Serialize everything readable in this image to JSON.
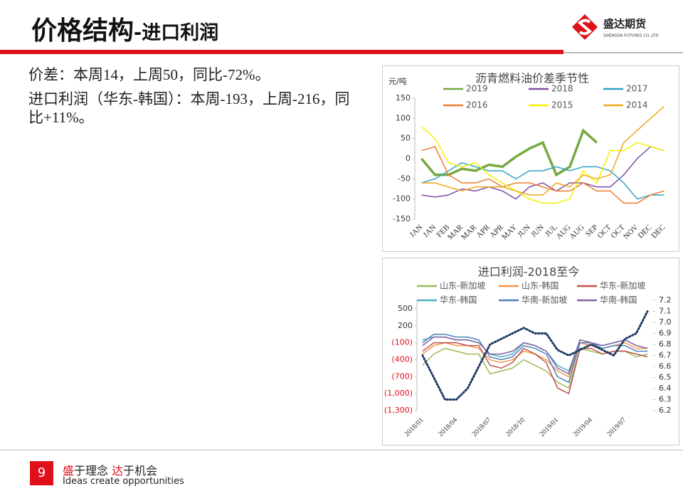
{
  "header": {
    "title": "价格结构",
    "subtitle": "-进口利润",
    "logo_text": "盛达期货",
    "logo_sub": "SHENGDA FUTURES CO.,LTD."
  },
  "body": {
    "lines": [
      "价差：本周14，上周50，同比-72%。",
      "进口利润（华东-韩国）：本周-193，上周-216，同比+11%。"
    ]
  },
  "chart_data": [
    {
      "type": "line",
      "title": "沥青燃料油价差季节性",
      "y_label": "元/吨",
      "categories": [
        "JAN",
        "JAN",
        "FEB",
        "MAR",
        "MAR",
        "APR",
        "APR",
        "MAY",
        "JUN",
        "JUN",
        "JUL",
        "AUG",
        "AUG",
        "SEP",
        "OCT",
        "OCT",
        "NOV",
        "DEC",
        "DEC"
      ],
      "ylim": [
        -150,
        150
      ],
      "yticks": [
        -150,
        -100,
        -50,
        0,
        50,
        100,
        150
      ],
      "grid": false,
      "series": [
        {
          "name": "2019",
          "color": "#77a942",
          "width": 3.5,
          "values": [
            0,
            -40,
            -40,
            -25,
            -30,
            -15,
            -20,
            5,
            25,
            40,
            -40,
            -20,
            70,
            40,
            null,
            null,
            null,
            null,
            null
          ]
        },
        {
          "name": "2018",
          "color": "#7e4ea3",
          "values": [
            -90,
            -95,
            -90,
            -75,
            -80,
            -70,
            -80,
            -100,
            -70,
            -60,
            -80,
            -60,
            -60,
            -70,
            -70,
            -40,
            0,
            30,
            20
          ]
        },
        {
          "name": "2017",
          "color": "#31a3c4",
          "values": [
            -60,
            -50,
            -30,
            -10,
            -20,
            -30,
            -30,
            -50,
            -30,
            -30,
            -20,
            -30,
            -20,
            -20,
            -30,
            -60,
            -100,
            -90,
            -90
          ]
        },
        {
          "name": "2016",
          "color": "#ed7d31",
          "values": [
            20,
            30,
            -40,
            -60,
            -60,
            -50,
            -70,
            -60,
            -60,
            -70,
            -80,
            -80,
            -60,
            -80,
            -80,
            -110,
            -110,
            -90,
            -80
          ]
        },
        {
          "name": "2015",
          "color": "#f2f200",
          "values": [
            80,
            50,
            -10,
            -20,
            -10,
            -40,
            -60,
            -80,
            -100,
            -110,
            -110,
            -100,
            -30,
            -60,
            20,
            20,
            40,
            30,
            20
          ]
        },
        {
          "name": "2014",
          "color": "#f0a81c",
          "values": [
            -60,
            -60,
            -70,
            -80,
            -70,
            -70,
            -70,
            -80,
            -90,
            -90,
            -60,
            -70,
            -40,
            -50,
            -40,
            40,
            70,
            100,
            130
          ]
        }
      ]
    },
    {
      "type": "line",
      "title": "进口利润-2018至今",
      "categories": [
        "2018/01",
        null,
        null,
        "2018/04",
        null,
        null,
        "2018/07",
        null,
        null,
        "2018/10",
        null,
        null,
        "2019/01",
        null,
        null,
        "2019/04",
        null,
        null,
        "2019/07",
        null,
        null
      ],
      "ylim": [
        -1300,
        650
      ],
      "yticks": [
        500,
        200,
        {
          "value": -100,
          "label": "(100)"
        },
        {
          "value": -400,
          "label": "(400)"
        },
        {
          "value": -700,
          "label": "(700)"
        },
        {
          "value": -1000,
          "label": "(1,000)"
        },
        {
          "value": -1300,
          "label": "(1,300)"
        }
      ],
      "y2lim": [
        6.2,
        7.2
      ],
      "y2ticks": [
        7.2,
        7.1,
        {
          "value": 7,
          "label": "7.0"
        },
        6.9,
        6.8,
        6.7,
        6.6,
        6.5,
        6.4,
        6.3,
        6.2
      ],
      "grid": false,
      "series": [
        {
          "name": "山东-新加坡",
          "color": "#9bbb59",
          "values": [
            -500,
            -300,
            -200,
            -250,
            -300,
            -300,
            -650,
            -600,
            -550,
            -400,
            -500,
            -600,
            -800,
            -900,
            -200,
            -250,
            -300,
            -250,
            -250,
            -350,
            -300
          ]
        },
        {
          "name": "山东-韩国",
          "color": "#f79646",
          "values": [
            -300,
            -150,
            -100,
            -150,
            -150,
            -200,
            -400,
            -450,
            -400,
            -250,
            -300,
            -400,
            -600,
            -700,
            -100,
            -150,
            -200,
            -150,
            -100,
            -200,
            -200
          ]
        },
        {
          "name": "华东-新加坡",
          "color": "#c0504d",
          "values": [
            -250,
            -100,
            -100,
            -100,
            -150,
            -150,
            -500,
            -550,
            -450,
            -200,
            -300,
            -450,
            -900,
            -1000,
            -200,
            -200,
            -300,
            -250,
            -250,
            -300,
            -350
          ]
        },
        {
          "name": "华东-韩国",
          "color": "#4bacc6",
          "values": [
            -50,
            0,
            0,
            -50,
            -50,
            -100,
            -300,
            -350,
            -300,
            -100,
            -150,
            -250,
            -500,
            -600,
            -50,
            -100,
            -150,
            -100,
            -50,
            -150,
            -200
          ]
        },
        {
          "name": "华南-新加坡",
          "color": "#4f81bd",
          "values": [
            -100,
            50,
            50,
            0,
            0,
            -50,
            -350,
            -400,
            -350,
            -150,
            -200,
            -300,
            -700,
            -800,
            -100,
            -100,
            -200,
            -150,
            -150,
            -250,
            -250
          ]
        },
        {
          "name": "华南-韩国",
          "color": "#8064a2",
          "values": [
            -150,
            0,
            0,
            -50,
            -50,
            -100,
            -300,
            -300,
            -250,
            -100,
            -150,
            -250,
            -550,
            -650,
            -50,
            -100,
            -150,
            -100,
            -50,
            -150,
            -200
          ]
        },
        {
          "color": "#1f3864",
          "axis": "y2",
          "dotted": true,
          "values": [
            6.7,
            6.5,
            6.3,
            6.3,
            6.4,
            6.6,
            6.8,
            6.85,
            6.9,
            6.95,
            6.9,
            6.9,
            6.75,
            6.7,
            6.75,
            6.8,
            6.75,
            6.7,
            6.85,
            6.9,
            7.1
          ]
        }
      ]
    }
  ],
  "footer": {
    "page": "9",
    "slogan": [
      "盛",
      "于理念 ",
      "达",
      "于机会"
    ],
    "slogan_en": "Ideas create opportunities"
  }
}
